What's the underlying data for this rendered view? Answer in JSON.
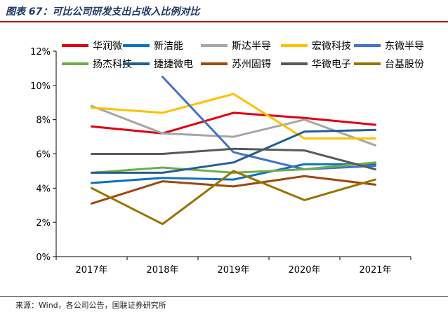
{
  "title": "图表 67：可比公司研发支出占收入比例对比",
  "source": "来源：Wind，各公司公告，国联证券研究所",
  "colors": {
    "title": "#1f3864",
    "rule": "#c00000"
  },
  "chart_data": {
    "type": "line",
    "title": "",
    "xlabel": "",
    "ylabel": "",
    "x": [
      "2017年",
      "2018年",
      "2019年",
      "2020年",
      "2021年"
    ],
    "ylim": [
      0,
      12
    ],
    "yticks": [
      "0%",
      "2%",
      "4%",
      "6%",
      "8%",
      "10%",
      "12%"
    ],
    "y_unit": "%",
    "legend_position": "top",
    "grid": false,
    "series": [
      {
        "name": "华润微",
        "color": "#e0000f",
        "values": [
          7.6,
          7.2,
          8.4,
          8.1,
          7.7
        ]
      },
      {
        "name": "新洁能",
        "color": "#0c70c4",
        "values": [
          4.3,
          4.6,
          4.5,
          5.4,
          5.4
        ]
      },
      {
        "name": "斯达半导",
        "color": "#a6a6a6",
        "values": [
          8.8,
          7.2,
          7.0,
          8.0,
          6.5
        ]
      },
      {
        "name": "宏微科技",
        "color": "#ffc000",
        "values": [
          8.7,
          8.4,
          9.5,
          6.9,
          6.9
        ]
      },
      {
        "name": "东微半导",
        "color": "#4472c4",
        "values": [
          null,
          10.5,
          6.1,
          5.1,
          5.3
        ]
      },
      {
        "name": "扬杰科技",
        "color": "#70ad47",
        "values": [
          4.9,
          5.2,
          4.9,
          5.1,
          5.5
        ]
      },
      {
        "name": "捷捷微电",
        "color": "#255e91",
        "values": [
          4.9,
          4.9,
          5.5,
          7.3,
          7.4
        ]
      },
      {
        "name": "苏州固锝",
        "color": "#9e480e",
        "values": [
          3.1,
          4.4,
          4.1,
          4.7,
          4.2
        ]
      },
      {
        "name": "华微电子",
        "color": "#595959",
        "values": [
          6.0,
          6.0,
          6.3,
          6.2,
          5.1
        ]
      },
      {
        "name": "台基股份",
        "color": "#997300",
        "values": [
          4.0,
          1.9,
          5.0,
          3.3,
          4.5
        ]
      }
    ]
  }
}
